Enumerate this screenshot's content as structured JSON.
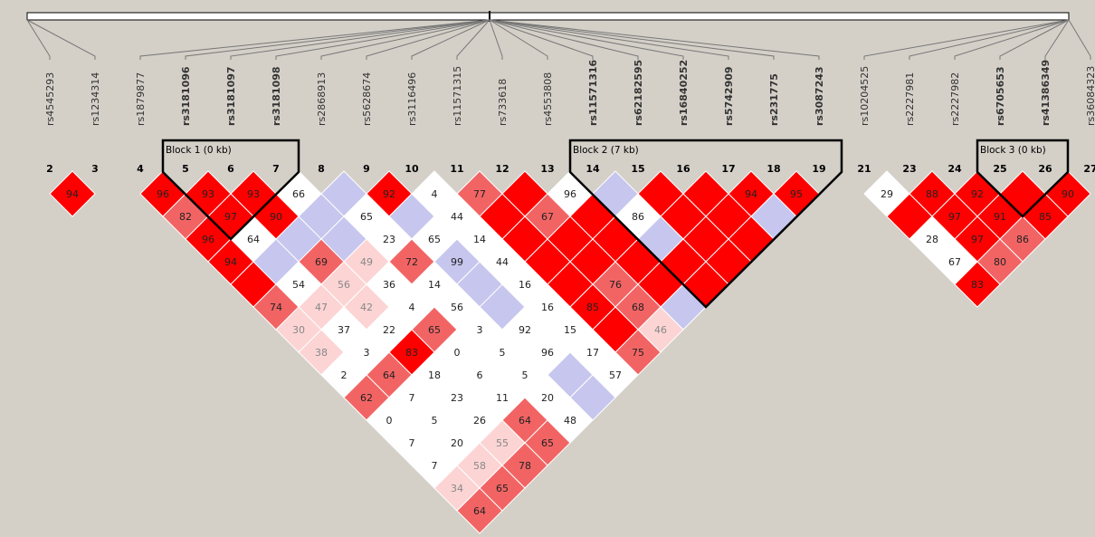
{
  "plot": {
    "type": "ld-heatmap",
    "background_color": "#d4d0c8",
    "snps": [
      {
        "index": "2",
        "rs": "rs4545293",
        "bold": false
      },
      {
        "index": "3",
        "rs": "rs1234314",
        "bold": false
      },
      {
        "index": "4",
        "rs": "rs1879877",
        "bold": false
      },
      {
        "index": "5",
        "rs": "rs3181096",
        "bold": true
      },
      {
        "index": "6",
        "rs": "rs3181097",
        "bold": true
      },
      {
        "index": "7",
        "rs": "rs3181098",
        "bold": true
      },
      {
        "index": "8",
        "rs": "rs2868913",
        "bold": false
      },
      {
        "index": "9",
        "rs": "rs5628674",
        "bold": false
      },
      {
        "index": "10",
        "rs": "rs3116496",
        "bold": false
      },
      {
        "index": "11",
        "rs": "rs11571315",
        "bold": false
      },
      {
        "index": "12",
        "rs": "rs733618",
        "bold": false
      },
      {
        "index": "13",
        "rs": "rs4553808",
        "bold": false
      },
      {
        "index": "14",
        "rs": "rs11571316",
        "bold": true
      },
      {
        "index": "15",
        "rs": "rs62182595",
        "bold": true
      },
      {
        "index": "16",
        "rs": "rs16840252",
        "bold": true
      },
      {
        "index": "17",
        "rs": "rs5742909",
        "bold": true
      },
      {
        "index": "18",
        "rs": "rs231775",
        "bold": true
      },
      {
        "index": "19",
        "rs": "rs3087243",
        "bold": true
      },
      {
        "index": "21",
        "rs": "rs10204525",
        "bold": false
      },
      {
        "index": "23",
        "rs": "rs2227981",
        "bold": false
      },
      {
        "index": "24",
        "rs": "rs2227982",
        "bold": false
      },
      {
        "index": "25",
        "rs": "rs6705653",
        "bold": true
      },
      {
        "index": "26",
        "rs": "rs41386349",
        "bold": true
      },
      {
        "index": "27",
        "rs": "rs36084323",
        "bold": false
      }
    ],
    "groups": [
      [
        0,
        1
      ],
      [
        2,
        17
      ],
      [
        18,
        23
      ]
    ],
    "blocks": [
      {
        "label": "Block 1 (0 kb)",
        "first": 3,
        "last": 5
      },
      {
        "label": "Block 2 (7 kb)",
        "first": 12,
        "last": 17
      },
      {
        "label": "Block 3 (0 kb)",
        "first": 21,
        "last": 22
      }
    ],
    "ld_rows": [
      [
        [
          "R",
          "94"
        ]
      ],
      [
        [
          "R",
          "96"
        ],
        [
          "R",
          "93"
        ],
        [
          "R",
          "93"
        ],
        [
          "W",
          "66"
        ],
        [
          "B",
          ""
        ],
        [
          "R",
          "92"
        ],
        [
          "W",
          "4"
        ],
        [
          "M",
          "77"
        ],
        [
          "R",
          ""
        ],
        [
          "W",
          "96"
        ],
        [
          "B",
          ""
        ],
        [
          "R",
          ""
        ],
        [
          "R",
          ""
        ],
        [
          "R",
          "94"
        ],
        [
          "R",
          "95"
        ],
        [
          "M",
          "82"
        ],
        [
          "R",
          "97"
        ],
        [
          "R",
          "90"
        ],
        [
          "B",
          ""
        ],
        [
          "W",
          "65"
        ],
        [
          "B",
          ""
        ],
        [
          "W",
          "44"
        ],
        [
          "R",
          ""
        ],
        [
          "M",
          "67"
        ],
        [
          "R",
          ""
        ],
        [
          "W",
          "86"
        ],
        [
          "R",
          ""
        ],
        [
          "R",
          ""
        ],
        [
          "B",
          ""
        ],
        [
          "R",
          "96"
        ],
        [
          "W",
          "64"
        ],
        [
          "B",
          ""
        ],
        [
          "B",
          ""
        ],
        [
          "W",
          "23"
        ],
        [
          "W",
          "65"
        ],
        [
          "W",
          "14"
        ],
        [
          "R",
          ""
        ],
        [
          "R",
          ""
        ],
        [
          "R",
          ""
        ],
        [
          "B",
          ""
        ],
        [
          "R",
          ""
        ],
        [
          "R",
          ""
        ],
        [
          "R",
          "94"
        ],
        [
          "B",
          ""
        ],
        [
          "M",
          "69"
        ],
        [
          "P",
          "49"
        ],
        [
          "M",
          "72"
        ],
        [
          "B",
          "99"
        ],
        [
          "W",
          "44"
        ],
        [
          "R",
          ""
        ],
        [
          "R",
          ""
        ],
        [
          "R",
          ""
        ],
        [
          "R",
          ""
        ],
        [
          "R",
          ""
        ],
        [
          "R",
          ""
        ],
        [
          "W",
          "54"
        ],
        [
          "P",
          "56"
        ],
        [
          "W",
          "36"
        ],
        [
          "W",
          "14"
        ],
        [
          "B",
          ""
        ],
        [
          "W",
          "16"
        ],
        [
          "R",
          ""
        ],
        [
          "M",
          "76"
        ],
        [
          "R",
          ""
        ],
        [
          "R",
          ""
        ],
        [
          "M",
          "74"
        ],
        [
          "P",
          "47"
        ],
        [
          "P",
          "42"
        ],
        [
          "W",
          "4"
        ],
        [
          "W",
          "56"
        ],
        [
          "B",
          ""
        ],
        [
          "W",
          "16"
        ],
        [
          "R",
          "85"
        ],
        [
          "M",
          "68"
        ],
        [
          "B",
          ""
        ],
        [
          "P",
          "30"
        ],
        [
          "W",
          "37"
        ],
        [
          "W",
          "22"
        ],
        [
          "M",
          "65"
        ],
        [
          "W",
          "3"
        ],
        [
          "W",
          "92"
        ],
        [
          "W",
          "15"
        ],
        [
          "R",
          ""
        ],
        [
          "P",
          "46"
        ],
        [
          "P",
          "38"
        ],
        [
          "W",
          "3"
        ],
        [
          "R",
          "83"
        ],
        [
          "W",
          "0"
        ],
        [
          "W",
          "5"
        ],
        [
          "W",
          "96"
        ],
        [
          "W",
          "17"
        ],
        [
          "M",
          "75"
        ],
        [
          "W",
          "2"
        ],
        [
          "M",
          "64"
        ],
        [
          "W",
          "18"
        ],
        [
          "W",
          "6"
        ],
        [
          "W",
          "5"
        ],
        [
          "B",
          ""
        ],
        [
          "W",
          "57"
        ],
        [
          "M",
          "62"
        ],
        [
          "W",
          "7"
        ],
        [
          "W",
          "23"
        ],
        [
          "W",
          "11"
        ],
        [
          "W",
          "20"
        ],
        [
          "B",
          ""
        ],
        [
          "W",
          "0"
        ],
        [
          "W",
          "5"
        ],
        [
          "W",
          "26"
        ],
        [
          "M",
          "64"
        ],
        [
          "W",
          "48"
        ],
        [
          "W",
          "7"
        ],
        [
          "W",
          "20"
        ],
        [
          "P",
          "55"
        ],
        [
          "M",
          "65"
        ],
        [
          "W",
          "7"
        ],
        [
          "P",
          "58"
        ],
        [
          "M",
          "78"
        ],
        [
          "P",
          "34"
        ],
        [
          "M",
          "65"
        ],
        [
          "M",
          "64"
        ]
      ],
      [
        [
          "W",
          "29"
        ],
        [
          "R",
          "88"
        ],
        [
          "R",
          "92"
        ],
        [
          "R",
          ""
        ],
        [
          "R",
          "90"
        ],
        [
          "R",
          ""
        ],
        [
          "R",
          "97"
        ],
        [
          "R",
          "91"
        ],
        [
          "R",
          "85"
        ],
        [
          "W",
          "28"
        ],
        [
          "R",
          "97"
        ],
        [
          "M",
          "86"
        ],
        [
          "W",
          "67"
        ],
        [
          "M",
          "80"
        ],
        [
          "R",
          "83"
        ]
      ]
    ]
  }
}
